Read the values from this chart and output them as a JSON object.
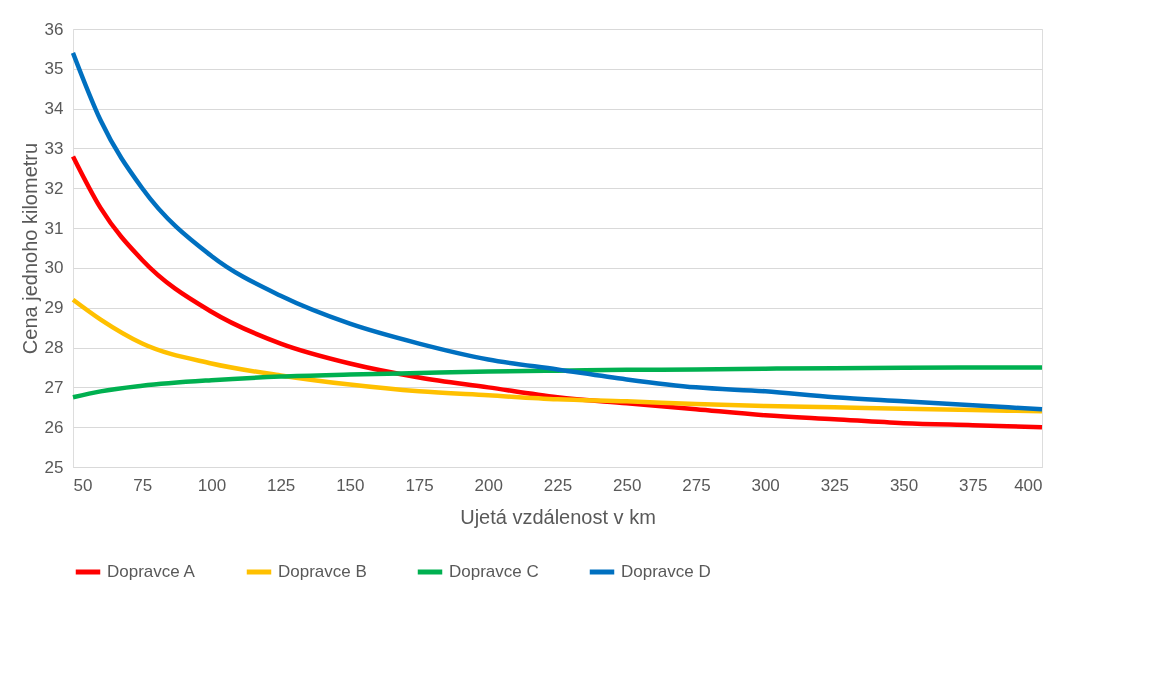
{
  "chart_data": {
    "type": "line",
    "xlabel": "Ujetá vzdálenost v km",
    "ylabel": "Cena jednoho kilometru",
    "x": [
      50,
      60,
      75,
      100,
      125,
      150,
      175,
      200,
      225,
      250,
      275,
      300,
      325,
      350,
      375,
      400
    ],
    "series": [
      {
        "name": "Dopravce A",
        "color": "#ff0000",
        "values": [
          32.8,
          31.5,
          30.2,
          28.9,
          28.1,
          27.6,
          27.25,
          27.0,
          26.75,
          26.6,
          26.45,
          26.3,
          26.2,
          26.1,
          26.05,
          26.0
        ]
      },
      {
        "name": "Dopravce B",
        "color": "#ffc000",
        "values": [
          29.2,
          28.7,
          28.1,
          27.6,
          27.3,
          27.07,
          26.9,
          26.8,
          26.7,
          26.65,
          26.58,
          26.53,
          26.5,
          26.46,
          26.43,
          26.4
        ]
      },
      {
        "name": "Dopravce C",
        "color": "#00b050",
        "values": [
          26.75,
          26.9,
          27.04,
          27.18,
          27.27,
          27.32,
          27.36,
          27.4,
          27.42,
          27.44,
          27.45,
          27.47,
          27.48,
          27.49,
          27.5,
          27.5
        ]
      },
      {
        "name": "Dopravce D",
        "color": "#0070c0",
        "values": [
          35.4,
          33.7,
          32.0,
          30.3,
          29.3,
          28.6,
          28.1,
          27.7,
          27.45,
          27.2,
          27.0,
          26.9,
          26.75,
          26.65,
          26.55,
          26.45
        ]
      }
    ],
    "xlim": [
      50,
      400
    ],
    "xticks": [
      50,
      75,
      100,
      125,
      150,
      175,
      200,
      225,
      250,
      275,
      300,
      325,
      350,
      375,
      400
    ],
    "ylim": [
      25,
      36
    ],
    "yticks": [
      25,
      26,
      27,
      28,
      29,
      30,
      31,
      32,
      33,
      34,
      35,
      36
    ],
    "grid": "y",
    "legend": "bottom",
    "marker": "none",
    "line_style": "solid"
  }
}
